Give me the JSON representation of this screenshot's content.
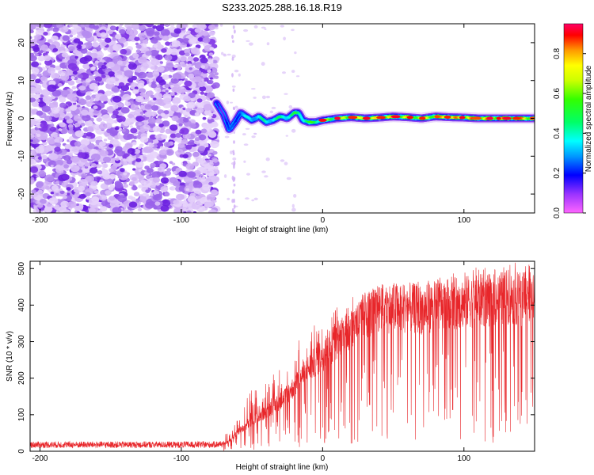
{
  "title": "S233.2025.288.16.18.R19",
  "chart_data": [
    {
      "type": "heatmap",
      "xlabel": "Height of straight line (km)",
      "ylabel": "Frequency (Hz)",
      "xlim": [
        -207,
        150
      ],
      "ylim": [
        -25,
        25
      ],
      "x_ticks": [
        -200,
        -100,
        0,
        100
      ],
      "y_ticks": [
        -20,
        -10,
        0,
        10,
        20
      ],
      "colorbar": {
        "label": "Normalized spectral amplitude",
        "range": [
          0.0,
          0.95
        ],
        "ticks": [
          0.0,
          0.2,
          0.4,
          0.6,
          0.8
        ],
        "tick_labels": [
          "0.0",
          "0.2",
          "0.4",
          "0.6",
          "0.8"
        ]
      },
      "noise_region_km": [
        -207,
        -75
      ],
      "carrier_track": {
        "heights_km": [
          -75,
          -70,
          -66,
          -62,
          -58,
          -54,
          -50,
          -45,
          -40,
          -35,
          -30,
          -25,
          -20,
          -17,
          -14,
          -10,
          -5,
          0,
          10,
          20,
          30,
          40,
          50,
          60,
          70,
          80,
          90,
          100,
          110,
          120,
          130,
          140,
          150
        ],
        "frequency_hz": [
          4,
          1,
          -3,
          -1,
          1.5,
          0.5,
          -0.5,
          0.5,
          -1,
          -0.5,
          0.5,
          0,
          1.5,
          1.5,
          -0.5,
          -1,
          -1,
          -0.5,
          0,
          0.3,
          0,
          0.2,
          0.5,
          0.3,
          0,
          0.5,
          0.3,
          0.2,
          0,
          0,
          0,
          0,
          0
        ],
        "amplitude": [
          0.2,
          0.2,
          0.25,
          0.3,
          0.35,
          0.4,
          0.45,
          0.45,
          0.5,
          0.5,
          0.5,
          0.55,
          0.55,
          0.55,
          0.6,
          0.6,
          0.62,
          0.65,
          0.7,
          0.75,
          0.8,
          0.82,
          0.85,
          0.85,
          0.88,
          0.88,
          0.9,
          0.9,
          0.92,
          0.92,
          0.92,
          0.92,
          0.92
        ]
      }
    },
    {
      "type": "line",
      "xlabel": "Height of straight line (km)",
      "ylabel": "SNR (10 * v/v)",
      "xlim": [
        -207,
        150
      ],
      "ylim": [
        0,
        520
      ],
      "x_ticks": [
        -200,
        -100,
        0,
        100
      ],
      "y_ticks": [
        0,
        100,
        200,
        300,
        400,
        500
      ],
      "series": [
        {
          "name": "SNR",
          "color": "#e8262a",
          "envelope": {
            "x": [
              -207,
              -150,
              -100,
              -80,
              -70,
              -65,
              -60,
              -50,
              -40,
              -30,
              -20,
              -10,
              0,
              10,
              20,
              30,
              40,
              50,
              60,
              70,
              80,
              90,
              100,
              110,
              120,
              130,
              140,
              150
            ],
            "mean": [
              18,
              18,
              18,
              18,
              20,
              30,
              55,
              80,
              110,
              140,
              180,
              230,
              270,
              310,
              340,
              380,
              395,
              400,
              400,
              395,
              405,
              410,
              415,
              420,
              420,
              430,
              425,
              420
            ],
            "peak": [
              30,
              32,
              30,
              30,
              35,
              75,
              110,
              170,
              190,
              230,
              300,
              350,
              340,
              400,
              420,
              440,
              450,
              460,
              465,
              470,
              480,
              490,
              500,
              505,
              510,
              520,
              515,
              520
            ]
          }
        }
      ]
    }
  ]
}
